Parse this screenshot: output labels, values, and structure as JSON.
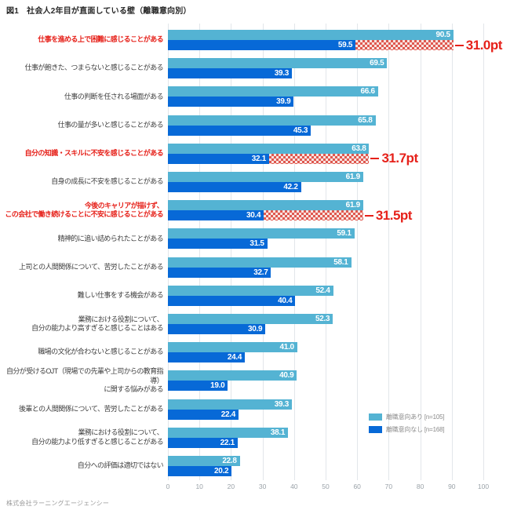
{
  "title": "図1　社会人2年目が直面している壁（離職意向別）",
  "footer": "株式会社ラーニングエージェンシー",
  "colors": {
    "bar_intent_yes": "#54b3d3",
    "bar_intent_no": "#0769d7",
    "accent_red": "#e6211a",
    "grid": "#e2e6ea"
  },
  "chart_data": {
    "type": "bar",
    "orientation": "horizontal",
    "title": "図1　社会人2年目が直面している壁（離職意向別）",
    "xlabel": "",
    "ylabel": "",
    "xlim": [
      0,
      100
    ],
    "x_ticks": [
      0,
      10,
      20,
      30,
      40,
      50,
      60,
      70,
      80,
      90,
      100
    ],
    "grid": true,
    "legend_position": "right-bottom",
    "categories": [
      "仕事を進める上で困難に感じることがある",
      "仕事が飽きた、つまらないと感じることがある",
      "仕事の判断を任される場面がある",
      "仕事の量が多いと感じることがある",
      "自分の知識・スキルに不安を感じることがある",
      "自身の成長に不安を感じることがある",
      "今後のキャリアが描けず、\nこの会社で働き続けることに不安に感じることがある",
      "精神的に追い詰められたことがある",
      "上司との人間関係について、苦労したことがある",
      "難しい仕事をする機会がある",
      "業務における役割について、\n自分の能力より高すぎると感じることはある",
      "職場の文化が合わないと感じることがある",
      "自分が受けるOJT（現場での先輩や上司からの教育指導）\nに関する悩みがある",
      "後輩との人間関係について、苦労したことがある",
      "業務における役割について、\n自分の能力より低すぎると感じることがある",
      "自分への評価は適切ではない"
    ],
    "highlighted_rows": [
      0,
      4,
      6
    ],
    "series": [
      {
        "name": "離職意向あり [n=105]",
        "color": "#54b3d3",
        "values": [
          90.5,
          69.5,
          66.6,
          65.8,
          63.8,
          61.9,
          61.9,
          59.1,
          58.1,
          52.4,
          52.3,
          41.0,
          40.9,
          39.3,
          38.1,
          22.8
        ]
      },
      {
        "name": "離職意向なし [n=168]",
        "color": "#0769d7",
        "values": [
          59.5,
          39.3,
          39.9,
          45.3,
          32.1,
          42.2,
          30.4,
          31.5,
          32.7,
          40.4,
          30.9,
          24.4,
          19.0,
          22.4,
          22.1,
          20.2
        ]
      }
    ],
    "annotations": [
      {
        "row": 0,
        "text": "31.0pt"
      },
      {
        "row": 4,
        "text": "31.7pt"
      },
      {
        "row": 6,
        "text": "31.5pt"
      }
    ]
  }
}
